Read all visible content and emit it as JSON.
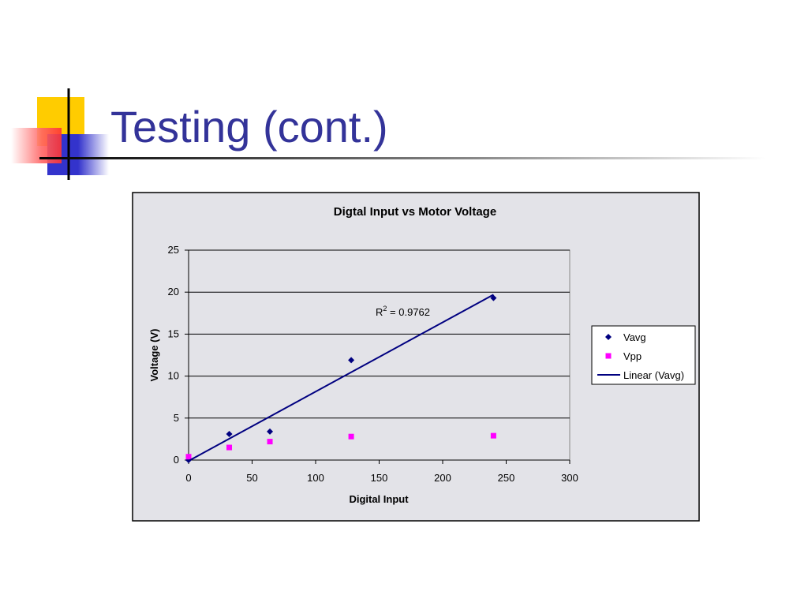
{
  "slide": {
    "title": "Testing (cont.)"
  },
  "chart_data": {
    "type": "scatter",
    "title": "Digtal Input vs Motor Voltage",
    "x_label": "Digital Input",
    "y_label": "Voltage (V)",
    "annotation": {
      "base": "R",
      "sup": "2",
      "rest": " = 0.9762"
    },
    "xlim": [
      0,
      300
    ],
    "xticks": [
      0,
      50,
      100,
      150,
      200,
      250,
      300
    ],
    "ylim": [
      0,
      25
    ],
    "yticks": [
      0,
      5,
      10,
      15,
      20,
      25
    ],
    "grid": true,
    "series": [
      {
        "name": "Vavg",
        "type": "scatter",
        "marker": "diamond",
        "color": "#000080",
        "x": [
          0,
          32,
          64,
          128,
          240
        ],
        "values": [
          0,
          3.1,
          3.4,
          11.9,
          19.3
        ]
      },
      {
        "name": "Vpp",
        "type": "scatter",
        "marker": "square",
        "color": "#ff00ff",
        "x": [
          0,
          32,
          64,
          128,
          240
        ],
        "values": [
          0.4,
          1.5,
          2.2,
          2.8,
          2.9
        ]
      },
      {
        "name": "Linear (Vavg)",
        "type": "line",
        "color": "#000080",
        "x": [
          0,
          240
        ],
        "values": [
          -0.1,
          19.7
        ]
      }
    ]
  }
}
